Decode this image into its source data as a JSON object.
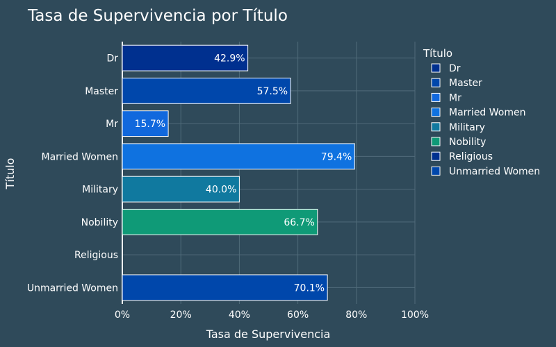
{
  "chart_data": {
    "type": "bar",
    "orientation": "horizontal",
    "title": "Tasa de Supervivencia por Título",
    "xlabel": "Tasa de Supervivencia",
    "ylabel": "Título",
    "xlim": [
      0,
      1
    ],
    "x_ticks": [
      "0%",
      "20%",
      "40%",
      "60%",
      "80%",
      "100%"
    ],
    "x_tick_values": [
      0,
      0.2,
      0.4,
      0.6,
      0.8,
      1.0
    ],
    "grid": true,
    "legend_title": "Título",
    "legend_position": "right",
    "categories": [
      "Dr",
      "Master",
      "Mr",
      "Married Women",
      "Military",
      "Nobility",
      "Religious",
      "Unmarried Women"
    ],
    "values": [
      0.429,
      0.575,
      0.157,
      0.794,
      0.4,
      0.667,
      0.0,
      0.701
    ],
    "labels": [
      "42.9%",
      "57.5%",
      "15.7%",
      "79.4%",
      "40.0%",
      "66.7%",
      "",
      "70.1%"
    ],
    "colors": [
      "#00308f",
      "#0047ab",
      "#1168dd",
      "#0f72e0",
      "#10799f",
      "#0f9a77",
      "#00308f",
      "#0047ab"
    ],
    "background": "#2f4a5a"
  }
}
